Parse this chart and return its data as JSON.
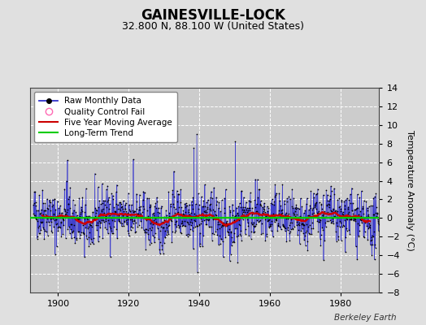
{
  "title": "GAINESVILLE-LOCK",
  "subtitle": "32.800 N, 88.100 W (United States)",
  "ylabel": "Temperature Anomaly (°C)",
  "credit": "Berkeley Earth",
  "start_year": 1893,
  "end_year": 1990,
  "ylim": [
    -8,
    14
  ],
  "yticks": [
    -8,
    -6,
    -4,
    -2,
    0,
    2,
    4,
    6,
    8,
    10,
    12,
    14
  ],
  "xticks": [
    1900,
    1920,
    1940,
    1960,
    1980
  ],
  "bg_color": "#e0e0e0",
  "plot_bg_color": "#cccccc",
  "grid_color": "#ffffff",
  "raw_line_color": "#3333cc",
  "raw_dot_color": "#000000",
  "moving_avg_color": "#cc0000",
  "trend_color": "#00cc00",
  "qc_fail_color": "#ff69b4",
  "seed": 42,
  "title_fontsize": 12,
  "subtitle_fontsize": 9,
  "tick_fontsize": 8,
  "legend_fontsize": 7.5,
  "ylabel_fontsize": 8
}
